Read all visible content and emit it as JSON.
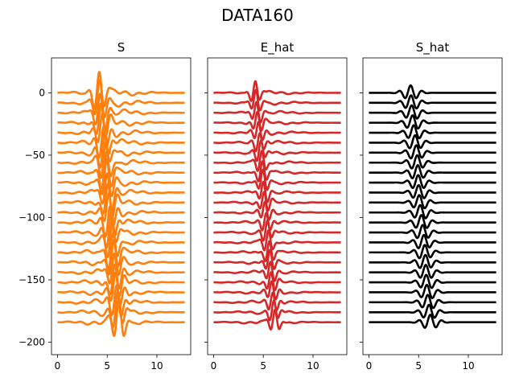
{
  "figure": {
    "title": "DATA160"
  },
  "chart_data": [
    {
      "type": "line",
      "title": "S",
      "color": "#ff7f0e",
      "x_range": [
        0,
        12.8
      ],
      "xlim": [
        -0.6,
        13.4
      ],
      "ylim": [
        -210,
        28
      ],
      "xticks": [
        0,
        5,
        10
      ],
      "yticks": [
        0,
        -50,
        -100,
        -150,
        -200
      ],
      "show_yticklabels": true,
      "trace_offsets": [
        0,
        -8,
        -16,
        -24,
        -32,
        -40,
        -48,
        -56,
        -64,
        -72,
        -80,
        -88,
        -96,
        -104,
        -112,
        -120,
        -128,
        -136,
        -144,
        -152,
        -160,
        -168,
        -176,
        -184
      ],
      "trace_model": {
        "arrival_start": 4.2,
        "arrival_slope": 0.085,
        "amplitude": 16,
        "width": 0.55,
        "frequency": 0.95,
        "noise": 3.2
      }
    },
    {
      "type": "line",
      "title": "E_hat",
      "color": "#d62728",
      "x_range": [
        0,
        12.8
      ],
      "xlim": [
        -0.6,
        13.4
      ],
      "ylim": [
        -210,
        28
      ],
      "xticks": [
        0,
        5,
        10
      ],
      "yticks": [
        0,
        -50,
        -100,
        -150,
        -200
      ],
      "show_yticklabels": false,
      "trace_offsets": [
        0,
        -8,
        -16,
        -24,
        -32,
        -40,
        -48,
        -56,
        -64,
        -72,
        -80,
        -88,
        -96,
        -104,
        -112,
        -120,
        -128,
        -136,
        -144,
        -152,
        -160,
        -168,
        -176,
        -184
      ],
      "trace_model": {
        "arrival_start": 4.2,
        "arrival_slope": 0.085,
        "amplitude": 9,
        "width": 0.45,
        "frequency": 1.1,
        "noise": 1.6
      }
    },
    {
      "type": "line",
      "title": "S_hat",
      "color": "#000000",
      "x_range": [
        0,
        12.8
      ],
      "xlim": [
        -0.6,
        13.4
      ],
      "ylim": [
        -210,
        28
      ],
      "xticks": [
        0,
        5,
        10
      ],
      "yticks": [
        0,
        -50,
        -100,
        -150,
        -200
      ],
      "show_yticklabels": false,
      "trace_offsets": [
        0,
        -8,
        -16,
        -24,
        -32,
        -40,
        -48,
        -56,
        -64,
        -72,
        -80,
        -88,
        -96,
        -104,
        -112,
        -120,
        -128,
        -136,
        -144,
        -152,
        -160,
        -168,
        -176,
        -184
      ],
      "trace_model": {
        "arrival_start": 4.2,
        "arrival_slope": 0.085,
        "amplitude": 6,
        "width": 0.7,
        "frequency": 0.85,
        "noise": 0
      }
    }
  ]
}
